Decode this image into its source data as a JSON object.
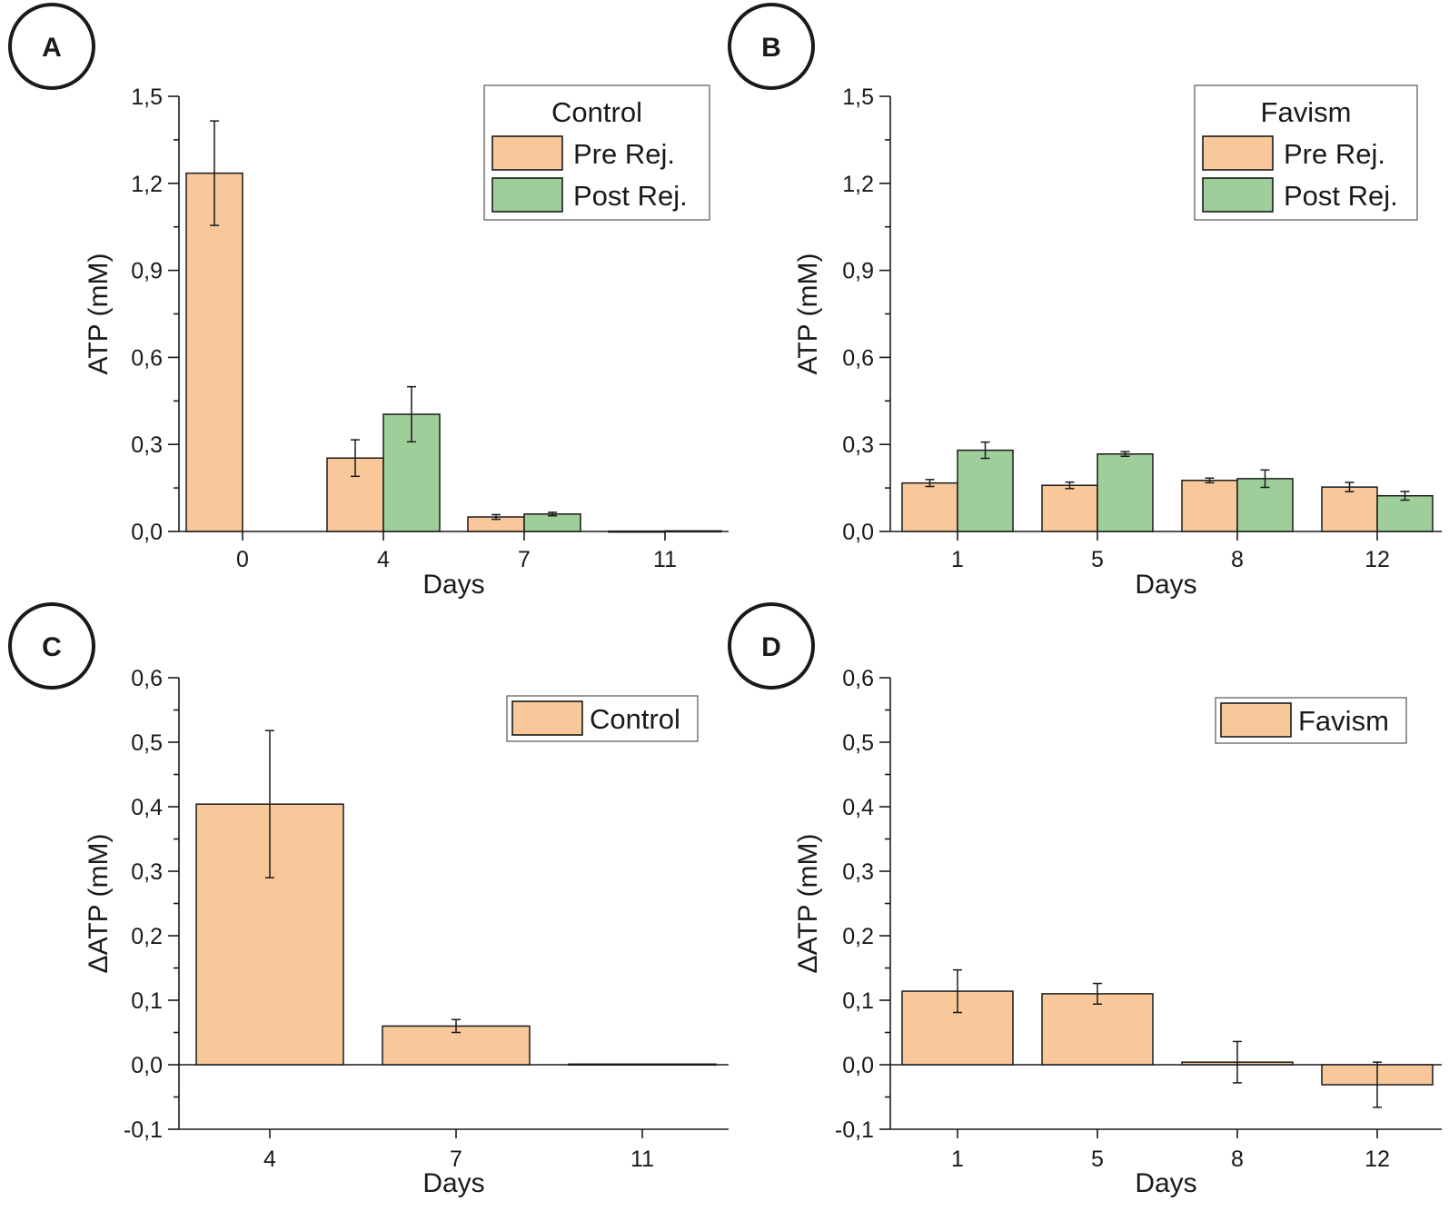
{
  "colors": {
    "pre": "#f8c89a",
    "post": "#9ecf9a",
    "axis": "#1a1a1a"
  },
  "chart_data": [
    {
      "panel": "A",
      "type": "bar",
      "ylabel": "ATP (mM)",
      "xlabel": "Days",
      "ylim": [
        0,
        1.5
      ],
      "yticks": [
        "0,0",
        "0,3",
        "0,6",
        "0,9",
        "1,2",
        "1,5"
      ],
      "categories": [
        "0",
        "4",
        "7",
        "11"
      ],
      "legend": {
        "title": "Control",
        "placement": "top-right"
      },
      "series": [
        {
          "name": "Pre Rej.",
          "values": [
            1.235,
            0.253,
            0.05,
            0.001
          ],
          "errors": [
            0.18,
            0.063,
            0.008,
            0.0005
          ]
        },
        {
          "name": "Post Rej.",
          "values": [
            null,
            0.404,
            0.06,
            0.002
          ],
          "errors": [
            null,
            0.095,
            0.006,
            0.0005
          ]
        }
      ]
    },
    {
      "panel": "B",
      "type": "bar",
      "ylabel": "ATP (mM)",
      "xlabel": "Days",
      "ylim": [
        0,
        1.5
      ],
      "yticks": [
        "0,0",
        "0,3",
        "0,6",
        "0,9",
        "1,2",
        "1,5"
      ],
      "categories": [
        "1",
        "5",
        "8",
        "12"
      ],
      "legend": {
        "title": "Favism",
        "placement": "top-right"
      },
      "series": [
        {
          "name": "Pre Rej.",
          "values": [
            0.167,
            0.159,
            0.176,
            0.153
          ],
          "errors": [
            0.012,
            0.011,
            0.008,
            0.016
          ]
        },
        {
          "name": "Post Rej.",
          "values": [
            0.28,
            0.267,
            0.182,
            0.123
          ],
          "errors": [
            0.028,
            0.008,
            0.03,
            0.015
          ]
        }
      ]
    },
    {
      "panel": "C",
      "type": "bar",
      "ylabel": "ΔATP (mM)",
      "xlabel": "Days",
      "ylim": [
        -0.1,
        0.6
      ],
      "yticks": [
        "-0,1",
        "0,0",
        "0,1",
        "0,2",
        "0,3",
        "0,4",
        "0,5",
        "0,6"
      ],
      "categories": [
        "4",
        "7",
        "11"
      ],
      "legend": {
        "title": "",
        "placement": "top-right"
      },
      "series": [
        {
          "name": "Control",
          "values": [
            0.404,
            0.06,
            0.001
          ],
          "errors": [
            0.114,
            0.01,
            0.0005
          ]
        }
      ]
    },
    {
      "panel": "D",
      "type": "bar",
      "ylabel": "ΔATP (mM)",
      "xlabel": "Days",
      "ylim": [
        -0.1,
        0.6
      ],
      "yticks": [
        "-0,1",
        "0,0",
        "0,1",
        "0,2",
        "0,3",
        "0,4",
        "0,5",
        "0,6"
      ],
      "categories": [
        "1",
        "5",
        "8",
        "12"
      ],
      "legend": {
        "title": "",
        "placement": "top-right"
      },
      "series": [
        {
          "name": "Favism",
          "values": [
            0.114,
            0.11,
            0.004,
            -0.031
          ],
          "errors": [
            0.033,
            0.016,
            0.032,
            0.035
          ]
        }
      ]
    }
  ]
}
